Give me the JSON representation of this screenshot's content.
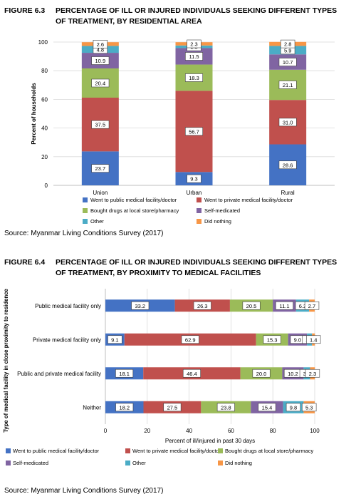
{
  "colors": {
    "public": "#4472C4",
    "private": "#C0504D",
    "drugs": "#9BBB59",
    "self": "#8064A2",
    "other": "#4BACC6",
    "nothing": "#F79646",
    "grid": "#d9d9d9",
    "axis": "#bfbfbf"
  },
  "figure1": {
    "number": "FIGURE 6.3",
    "title": "PERCENTAGE OF ILL OR INJURED INDIVIDUALS SEEKING DIFFERENT TYPES OF TREATMENT, BY RESIDENTIAL AREA",
    "source": "Source: Myanmar Living Conditions Survey (2017)"
  },
  "figure2": {
    "number": "FIGURE 6.4",
    "title": "PERCENTAGE OF ILL OR INJURED INDIVIDUALS SEEKING DIFFERENT TYPES OF TREATMENT, BY PROXIMITY TO MEDICAL FACILITIES",
    "source": "Source: Myanmar Living Conditions Survey (2017)"
  },
  "chart_data": [
    {
      "type": "bar",
      "stacked": true,
      "orientation": "vertical",
      "categories": [
        "Union",
        "Urban",
        "Rural"
      ],
      "ylabel": "Percent of households",
      "xlabel": "",
      "ylim": [
        0,
        100
      ],
      "yticks": [
        0,
        20,
        40,
        60,
        80,
        100
      ],
      "grid": true,
      "legend_position": "bottom",
      "series": [
        {
          "name": "Went to public medical facility/doctor",
          "color_key": "public",
          "values": [
            23.7,
            9.3,
            28.6
          ],
          "labels": [
            "23.7",
            "9.3",
            "28.6"
          ]
        },
        {
          "name": "Went to private medical facility/doctor",
          "color_key": "private",
          "values": [
            37.5,
            56.7,
            31.0
          ],
          "labels": [
            "37.5",
            "56.7",
            "31.0"
          ]
        },
        {
          "name": "Bought drugs at local store/pharmacy",
          "color_key": "drugs",
          "values": [
            20.4,
            18.3,
            21.1
          ],
          "labels": [
            "20.4",
            "18.3",
            "21.1"
          ]
        },
        {
          "name": "Self-medicated",
          "color_key": "self",
          "values": [
            10.9,
            11.5,
            10.7
          ],
          "labels": [
            "10.9",
            "11.5",
            "10.7"
          ]
        },
        {
          "name": "Other",
          "color_key": "other",
          "values": [
            4.8,
            1.8,
            5.9
          ],
          "labels": [
            "4.8",
            "1.8",
            "5.9"
          ]
        },
        {
          "name": "Did nothing",
          "color_key": "nothing",
          "values": [
            2.6,
            2.3,
            2.8
          ],
          "labels": [
            "2.6",
            "2.3",
            "2.8"
          ]
        }
      ]
    },
    {
      "type": "bar",
      "stacked": true,
      "orientation": "horizontal",
      "categories": [
        "Public medical facility only",
        "Private medical facility only",
        "Public and private medical facility",
        "Neither"
      ],
      "ylabel": "Type of medical facility in close proximity to residence",
      "xlabel": "Percent of ill/injured in past 30 days",
      "xlim": [
        0,
        100
      ],
      "xticks": [
        0,
        20,
        40,
        60,
        80,
        100
      ],
      "grid": true,
      "legend_position": "bottom",
      "series": [
        {
          "name": "Went to public medical facility/doctor",
          "color_key": "public",
          "values": [
            33.2,
            9.1,
            18.1,
            18.2
          ],
          "labels": [
            "33.2",
            "9.1",
            "18.1",
            "18.2"
          ]
        },
        {
          "name": "Went to private medical facility/doctor",
          "color_key": "private",
          "values": [
            26.3,
            62.9,
            46.4,
            27.5
          ],
          "labels": [
            "26.3",
            "62.9",
            "46.4",
            "27.5"
          ]
        },
        {
          "name": "Bought drugs at local store/pharmacy",
          "color_key": "drugs",
          "values": [
            20.5,
            15.3,
            20.0,
            23.8
          ],
          "labels": [
            "20.5",
            "15.3",
            "20.0",
            "23.8"
          ]
        },
        {
          "name": "Self-medicated",
          "color_key": "self",
          "values": [
            11.1,
            9.0,
            10.2,
            15.4
          ],
          "labels": [
            "11.1",
            "9.0",
            "10.2",
            "15.4"
          ]
        },
        {
          "name": "Other",
          "color_key": "other",
          "values": [
            6.2,
            2.4,
            3.1,
            9.8
          ],
          "labels": [
            "6.2",
            "2.4",
            "3.1",
            "9.8"
          ]
        },
        {
          "name": "Did nothing",
          "color_key": "nothing",
          "values": [
            2.7,
            1.4,
            2.3,
            5.3
          ],
          "labels": [
            "2.7",
            "1.4",
            "2.3",
            "5.3"
          ]
        }
      ]
    }
  ]
}
